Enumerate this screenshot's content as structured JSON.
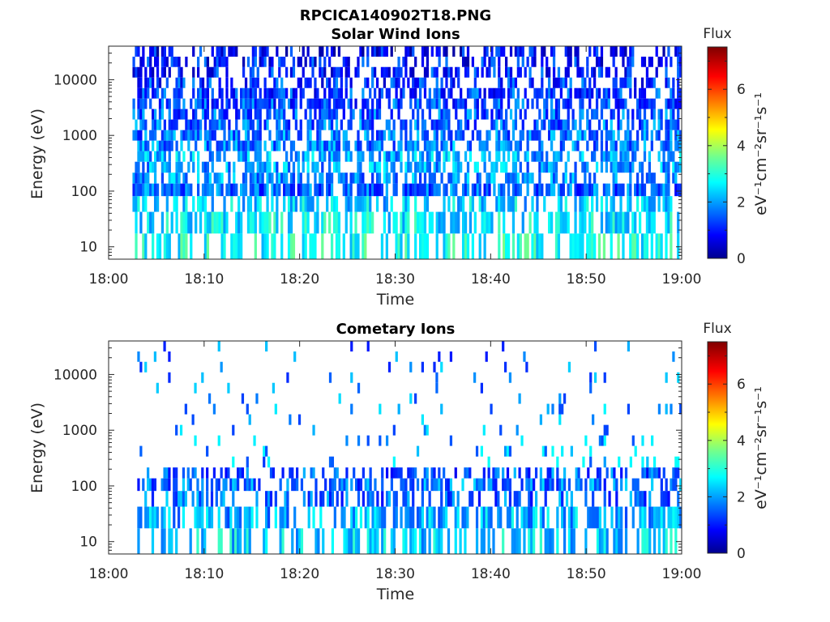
{
  "figure": {
    "filename": "RPCICA140902T18.PNG"
  },
  "chart_data": [
    {
      "type": "heatmap",
      "title": "Solar Wind Ions",
      "xlabel": "Time",
      "ylabel": "Energy (eV)",
      "x_ticks": [
        "18:00",
        "18:10",
        "18:20",
        "18:30",
        "18:40",
        "18:50",
        "19:00"
      ],
      "xlim": [
        "18:00",
        "19:00"
      ],
      "y_scale": "log",
      "y_ticks": [
        "10",
        "100",
        "1000",
        "10000"
      ],
      "ylim": [
        6,
        40000
      ],
      "data_start": "18:02.5",
      "energy_bins_eV": [
        10,
        30,
        60,
        110,
        170,
        270,
        420,
        650,
        1000,
        1550,
        2400,
        3700,
        5700,
        8800,
        13600,
        21000,
        32000
      ],
      "colorbar": {
        "title": "Flux",
        "label": "eV⁻¹cm⁻²sr⁻¹s⁻¹",
        "range": [
          0,
          7.5
        ],
        "ticks": [
          "0",
          "2",
          "4",
          "6"
        ],
        "colormap": "jet"
      },
      "flux_by_bin": [
        2.9,
        2.6,
        2.4,
        1.6,
        1.9,
        2.0,
        2.1,
        1.8,
        1.7,
        1.6,
        1.5,
        1.4,
        1.3,
        1.2,
        1.1,
        1.0,
        0.9
      ],
      "occupancy_by_bin": [
        0.55,
        0.62,
        0.55,
        0.78,
        0.55,
        0.62,
        0.58,
        0.62,
        0.6,
        0.58,
        0.55,
        0.55,
        0.52,
        0.5,
        0.48,
        0.45,
        0.5
      ],
      "grid": false
    },
    {
      "type": "heatmap",
      "title": "Cometary Ions",
      "xlabel": "Time",
      "ylabel": "Energy (eV)",
      "x_ticks": [
        "18:00",
        "18:10",
        "18:20",
        "18:30",
        "18:40",
        "18:50",
        "19:00"
      ],
      "xlim": [
        "18:00",
        "19:00"
      ],
      "y_scale": "log",
      "y_ticks": [
        "10",
        "100",
        "1000",
        "10000"
      ],
      "ylim": [
        6,
        40000
      ],
      "data_start": "18:03",
      "energy_bins_eV": [
        10,
        30,
        60,
        110,
        170,
        270,
        420,
        650,
        1000,
        1550,
        2400,
        3700,
        5700,
        8800,
        13600,
        21000,
        32000
      ],
      "colorbar": {
        "title": "Flux",
        "label": "eV⁻¹cm⁻²sr⁻¹s⁻¹",
        "range": [
          0,
          7.5
        ],
        "ticks": [
          "0",
          "2",
          "4",
          "6"
        ],
        "colormap": "jet"
      },
      "flux_by_bin": [
        2.4,
        2.1,
        1.6,
        1.7,
        1.5,
        2.0,
        2.0,
        2.0,
        1.9,
        1.9,
        1.9,
        1.8,
        1.7,
        1.7,
        1.7,
        1.6,
        1.6
      ],
      "occupancy_by_bin": [
        0.45,
        0.6,
        0.4,
        0.55,
        0.45,
        0.1,
        0.08,
        0.05,
        0.05,
        0.05,
        0.06,
        0.06,
        0.05,
        0.05,
        0.05,
        0.04,
        0.03
      ],
      "grid": false
    }
  ]
}
